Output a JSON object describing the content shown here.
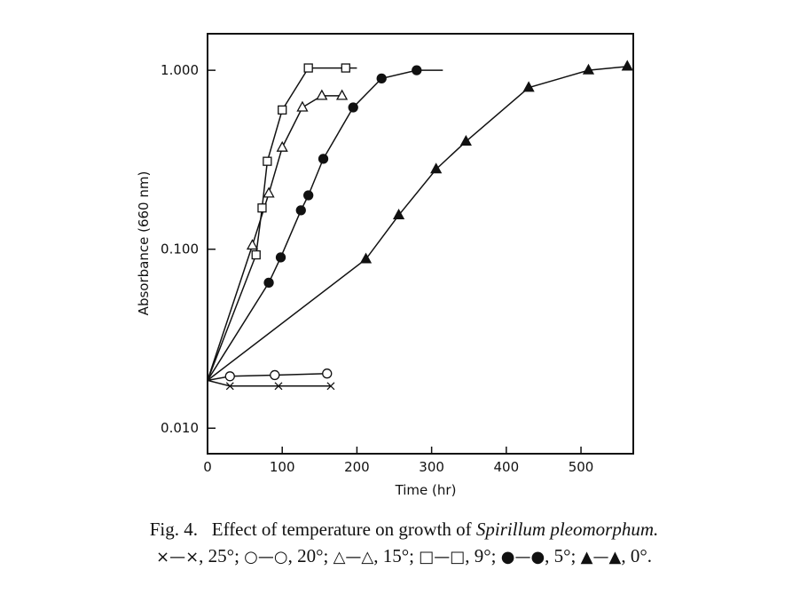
{
  "chart_data": {
    "type": "line",
    "title": "",
    "xlabel": "Time (hr)",
    "ylabel": "Absorbance (660 nm)",
    "xlim": [
      0,
      570
    ],
    "ylim": [
      0.0072,
      1.6
    ],
    "yscale": "log",
    "xticks": [
      0,
      100,
      200,
      300,
      400,
      500
    ],
    "xtick_labels": [
      "0",
      "100",
      "200",
      "300",
      "400",
      "500"
    ],
    "yticks": [
      0.01,
      0.1,
      1.0
    ],
    "ytick_labels": [
      "0.010",
      "0.100",
      "1.000"
    ],
    "grid": false,
    "series": [
      {
        "name": "25°",
        "marker": "x",
        "x": [
          0,
          30,
          95,
          165
        ],
        "y": [
          0.0185,
          0.0172,
          0.0172,
          0.0172
        ]
      },
      {
        "name": "20°",
        "marker": "circle-open",
        "x": [
          0,
          30,
          90,
          160
        ],
        "y": [
          0.0185,
          0.0195,
          0.0198,
          0.0202
        ]
      },
      {
        "name": "15°",
        "marker": "triangle-open",
        "x": [
          0,
          60,
          82,
          100,
          127,
          153,
          180
        ],
        "y": [
          0.0185,
          0.105,
          0.205,
          0.37,
          0.62,
          0.72,
          0.72
        ]
      },
      {
        "name": "9°",
        "marker": "square-open",
        "x": [
          0,
          65,
          73,
          80,
          100,
          135,
          185,
          200
        ],
        "y": [
          0.0185,
          0.093,
          0.17,
          0.31,
          0.6,
          1.03,
          1.03,
          1.03
        ]
      },
      {
        "name": "5°",
        "marker": "circle-filled",
        "x": [
          0,
          82,
          98,
          125,
          135,
          155,
          195,
          233,
          280,
          315
        ],
        "y": [
          0.0185,
          0.065,
          0.09,
          0.165,
          0.2,
          0.32,
          0.62,
          0.9,
          1.0,
          1.0
        ]
      },
      {
        "name": "0°",
        "marker": "triangle-filled",
        "x": [
          0,
          212,
          256,
          306,
          346,
          430,
          510,
          562
        ],
        "y": [
          0.0185,
          0.088,
          0.155,
          0.28,
          0.4,
          0.8,
          1.0,
          1.05
        ]
      }
    ]
  },
  "caption": {
    "prefix": "Fig. 4.",
    "text": "Effect of temperature on growth of",
    "species": "Spirillum pleomorphum.",
    "legend": [
      {
        "symbol": "×—×",
        "label": "25°"
      },
      {
        "symbol": "○—○",
        "label": "20°"
      },
      {
        "symbol": "△—△",
        "label": "15°"
      },
      {
        "symbol": "□—□",
        "label": "9°"
      },
      {
        "symbol": "●—●",
        "label": "5°"
      },
      {
        "symbol": "▲—▲",
        "label": "0°"
      }
    ]
  }
}
